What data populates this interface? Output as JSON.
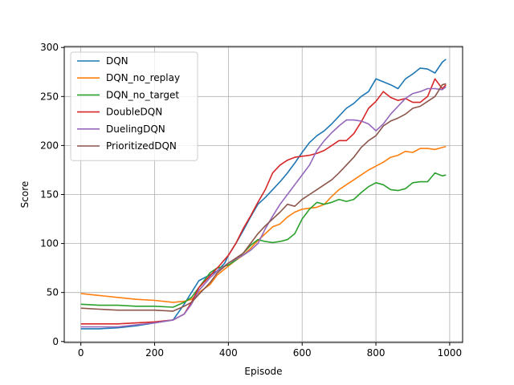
{
  "chart_data": {
    "type": "line",
    "xlabel": "Episode",
    "ylabel": "Score",
    "xlim": [
      -45,
      1035
    ],
    "ylim": [
      -1,
      301
    ],
    "xticks": [
      0,
      200,
      400,
      600,
      800,
      1000
    ],
    "yticks": [
      0,
      50,
      100,
      150,
      200,
      250,
      300
    ],
    "grid": true,
    "legend_position": "upper-left",
    "series": [
      {
        "name": "DQN",
        "color": "#1f77b4",
        "x": [
          0,
          50,
          100,
          150,
          200,
          250,
          280,
          300,
          320,
          350,
          370,
          390,
          400,
          420,
          440,
          460,
          480,
          500,
          520,
          540,
          560,
          580,
          600,
          620,
          640,
          660,
          680,
          700,
          720,
          740,
          760,
          780,
          800,
          820,
          840,
          860,
          880,
          900,
          920,
          940,
          960,
          980,
          990
        ],
        "y": [
          13,
          13,
          14,
          16,
          19,
          22,
          38,
          50,
          62,
          68,
          72,
          80,
          88,
          100,
          113,
          127,
          140,
          147,
          155,
          163,
          172,
          182,
          193,
          203,
          210,
          215,
          222,
          230,
          238,
          243,
          250,
          255,
          268,
          265,
          262,
          258,
          268,
          273,
          279,
          278,
          274,
          285,
          288
        ]
      },
      {
        "name": "DQN_no_replay",
        "color": "#ff7f0e",
        "x": [
          0,
          50,
          100,
          150,
          200,
          250,
          280,
          300,
          320,
          350,
          370,
          400,
          420,
          440,
          460,
          480,
          500,
          520,
          540,
          560,
          580,
          600,
          620,
          640,
          660,
          680,
          700,
          720,
          740,
          760,
          780,
          800,
          820,
          840,
          860,
          880,
          900,
          920,
          940,
          960,
          980,
          990
        ],
        "y": [
          49,
          47,
          45,
          43,
          42,
          40,
          41,
          43,
          50,
          58,
          68,
          77,
          83,
          88,
          95,
          103,
          110,
          117,
          120,
          127,
          132,
          135,
          136,
          137,
          140,
          148,
          155,
          160,
          165,
          170,
          175,
          179,
          183,
          188,
          190,
          194,
          193,
          197,
          197,
          196,
          198,
          199
        ]
      },
      {
        "name": "DQN_no_target",
        "color": "#2ca02c",
        "x": [
          0,
          50,
          100,
          150,
          200,
          250,
          280,
          300,
          320,
          350,
          370,
          400,
          420,
          440,
          460,
          480,
          500,
          520,
          540,
          560,
          580,
          600,
          620,
          640,
          660,
          680,
          700,
          720,
          740,
          760,
          780,
          800,
          820,
          840,
          860,
          880,
          900,
          920,
          940,
          960,
          980,
          990
        ],
        "y": [
          38,
          37,
          37,
          36,
          36,
          35,
          40,
          45,
          55,
          70,
          75,
          78,
          83,
          90,
          98,
          104,
          102,
          101,
          102,
          104,
          110,
          125,
          135,
          142,
          140,
          142,
          145,
          143,
          145,
          152,
          158,
          162,
          160,
          155,
          154,
          156,
          162,
          163,
          163,
          172,
          169,
          170
        ]
      },
      {
        "name": "DoubleDQN",
        "color": "#d62728",
        "x": [
          0,
          50,
          100,
          150,
          200,
          250,
          280,
          300,
          320,
          350,
          370,
          400,
          420,
          440,
          460,
          480,
          500,
          520,
          540,
          560,
          580,
          600,
          620,
          640,
          660,
          680,
          700,
          720,
          740,
          760,
          780,
          800,
          820,
          840,
          860,
          880,
          900,
          920,
          940,
          960,
          980,
          990
        ],
        "y": [
          18,
          18,
          18,
          19,
          20,
          22,
          28,
          40,
          55,
          67,
          75,
          88,
          100,
          115,
          128,
          142,
          155,
          172,
          180,
          185,
          188,
          189,
          190,
          192,
          195,
          200,
          205,
          205,
          212,
          224,
          238,
          245,
          255,
          249,
          246,
          248,
          244,
          244,
          250,
          268,
          258,
          262
        ]
      },
      {
        "name": "DuelingDQN",
        "color": "#9467bd",
        "x": [
          0,
          50,
          100,
          150,
          200,
          250,
          280,
          300,
          320,
          350,
          370,
          400,
          420,
          440,
          460,
          480,
          500,
          520,
          540,
          560,
          580,
          600,
          620,
          640,
          660,
          680,
          700,
          720,
          740,
          760,
          780,
          800,
          820,
          840,
          860,
          880,
          900,
          920,
          940,
          960,
          980,
          990
        ],
        "y": [
          15,
          15,
          15,
          17,
          19,
          22,
          28,
          38,
          52,
          65,
          72,
          80,
          84,
          88,
          93,
          100,
          115,
          128,
          140,
          150,
          160,
          170,
          180,
          195,
          205,
          213,
          220,
          226,
          226,
          225,
          222,
          215,
          222,
          232,
          240,
          248,
          253,
          255,
          258,
          258,
          257,
          260
        ]
      },
      {
        "name": "PrioritizedDQN",
        "color": "#8c564b",
        "x": [
          0,
          50,
          100,
          150,
          200,
          250,
          280,
          300,
          320,
          350,
          370,
          400,
          420,
          440,
          460,
          480,
          500,
          520,
          540,
          560,
          580,
          600,
          620,
          640,
          660,
          680,
          700,
          720,
          740,
          760,
          780,
          800,
          820,
          840,
          860,
          880,
          900,
          920,
          940,
          960,
          980,
          990
        ],
        "y": [
          34,
          33,
          32,
          32,
          32,
          31,
          36,
          40,
          48,
          60,
          70,
          80,
          85,
          90,
          100,
          110,
          118,
          125,
          132,
          140,
          138,
          145,
          150,
          155,
          160,
          165,
          172,
          180,
          188,
          198,
          205,
          210,
          220,
          225,
          228,
          232,
          238,
          240,
          245,
          250,
          262,
          263
        ]
      }
    ]
  }
}
